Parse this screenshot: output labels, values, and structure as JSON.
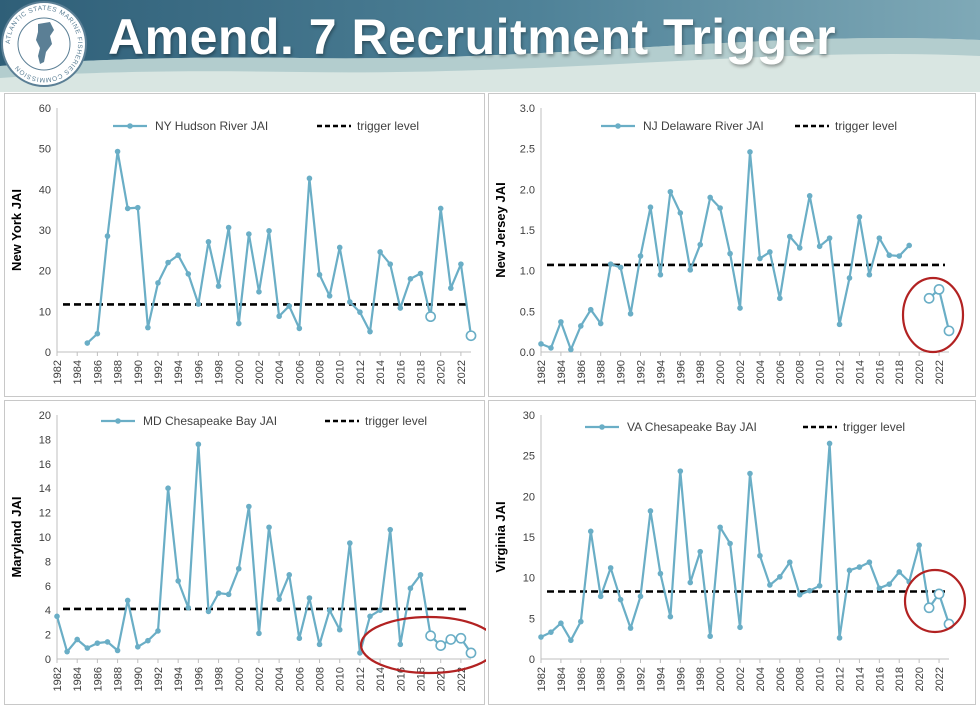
{
  "header": {
    "title": "Amend. 7 Recruitment Trigger",
    "logo_text": "ATLANTIC STATES MARINE FISHERIES COMMISSION"
  },
  "colors": {
    "series": "#6aaec6",
    "trigger": "#000000",
    "highlight": "#b22222",
    "header_dark": "#3f6f86",
    "header_light": "#cfe0dc"
  },
  "chart_data": [
    {
      "type": "line",
      "ylabel": "New York JAI",
      "ylim": [
        0,
        60
      ],
      "yticks": [
        "0",
        "10",
        "20",
        "30",
        "40",
        "50",
        "60"
      ],
      "xticks": [
        "1982",
        "1984",
        "1986",
        "1988",
        "1990",
        "1992",
        "1994",
        "1996",
        "1998",
        "2000",
        "2002",
        "2004",
        "2006",
        "2008",
        "2010",
        "2012",
        "2014",
        "2016",
        "2018",
        "2020",
        "2022"
      ],
      "legend": {
        "series": "NY Hudson River JAI",
        "trigger": "trigger level"
      },
      "trigger_level": 11.7,
      "series": [
        {
          "name": "NY Hudson River JAI",
          "x": [
            1985,
            1986,
            1987,
            1988,
            1989,
            1990,
            1991,
            1992,
            1993,
            1994,
            1995,
            1996,
            1997,
            1998,
            1999,
            2000,
            2001,
            2002,
            2003,
            2004,
            2005,
            2006,
            2007,
            2008,
            2009,
            2010,
            2011,
            2012,
            2013,
            2014,
            2015,
            2016,
            2017,
            2018,
            2019,
            2020,
            2021,
            2022,
            2023
          ],
          "y": [
            2.2,
            4.5,
            28.5,
            49.3,
            35.3,
            35.5,
            6.0,
            17.0,
            22.0,
            23.8,
            19.2,
            11.8,
            27.1,
            16.2,
            30.6,
            7.0,
            29.0,
            14.8,
            29.8,
            8.8,
            11.3,
            5.8,
            42.7,
            19.0,
            13.8,
            25.7,
            12.3,
            9.8,
            5.0,
            24.6,
            21.6,
            10.8,
            18.0,
            19.3,
            8.7,
            35.3,
            15.7,
            21.6,
            4.0
          ]
        }
      ],
      "hollow_points": [
        [
          2019,
          8.7
        ],
        [
          2023,
          4.0
        ]
      ],
      "circled": false
    },
    {
      "type": "line",
      "ylabel": "New Jersey JAI",
      "ylim": [
        0,
        3
      ],
      "yticks": [
        "0.0",
        "0.5",
        "1.0",
        "1.5",
        "2.0",
        "2.5",
        "3.0"
      ],
      "xticks": [
        "1982",
        "1984",
        "1986",
        "1988",
        "1990",
        "1992",
        "1994",
        "1996",
        "1998",
        "2000",
        "2002",
        "2004",
        "2006",
        "2008",
        "2010",
        "2012",
        "2014",
        "2016",
        "2018",
        "2020",
        "2022"
      ],
      "legend": {
        "series": "NJ Delaware River JAI",
        "trigger": "trigger level"
      },
      "trigger_level": 1.07,
      "series": [
        {
          "name": "NJ Delaware River JAI",
          "x": [
            1982,
            1983,
            1984,
            1985,
            1986,
            1987,
            1988,
            1989,
            1990,
            1991,
            1992,
            1993,
            1994,
            1995,
            1996,
            1997,
            1998,
            1999,
            2000,
            2001,
            2002,
            2003,
            2004,
            2005,
            2006,
            2007,
            2008,
            2009,
            2010,
            2011,
            2012,
            2013,
            2014,
            2015,
            2016,
            2017,
            2018,
            2019
          ],
          "y": [
            0.1,
            0.05,
            0.37,
            0.03,
            0.32,
            0.52,
            0.35,
            1.08,
            1.04,
            0.47,
            1.18,
            1.78,
            0.95,
            1.97,
            1.71,
            1.01,
            1.32,
            1.9,
            1.77,
            1.21,
            0.54,
            2.46,
            1.15,
            1.23,
            0.66,
            1.42,
            1.28,
            1.92,
            1.3,
            1.4,
            0.34,
            0.91,
            1.66,
            0.95,
            1.4,
            1.19,
            1.18,
            1.31
          ]
        },
        {
          "name": "",
          "x": [
            2021,
            2022,
            2023
          ],
          "y": [
            0.66,
            0.77,
            0.26
          ]
        }
      ],
      "hollow_points": [
        [
          2021,
          0.66
        ],
        [
          2022,
          0.77
        ],
        [
          2023,
          0.26
        ]
      ],
      "circled": true
    },
    {
      "type": "line",
      "ylabel": "Maryland JAI",
      "ylim": [
        0,
        20
      ],
      "yticks": [
        "0",
        "2",
        "4",
        "6",
        "8",
        "10",
        "12",
        "14",
        "16",
        "18",
        "20"
      ],
      "xticks": [
        "1982",
        "1984",
        "1986",
        "1988",
        "1990",
        "1992",
        "1994",
        "1996",
        "1998",
        "2000",
        "2002",
        "2004",
        "2006",
        "2008",
        "2010",
        "2012",
        "2014",
        "2016",
        "2018",
        "2020",
        "2022"
      ],
      "legend": {
        "series": "MD Chesapeake Bay JAI",
        "trigger": "trigger level"
      },
      "trigger_level": 4.1,
      "series": [
        {
          "name": "MD Chesapeake Bay JAI",
          "x": [
            1982,
            1983,
            1984,
            1985,
            1986,
            1987,
            1988,
            1989,
            1990,
            1991,
            1992,
            1993,
            1994,
            1995,
            1996,
            1997,
            1998,
            1999,
            2000,
            2001,
            2002,
            2003,
            2004,
            2005,
            2006,
            2007,
            2008,
            2009,
            2010,
            2011,
            2012,
            2013,
            2014,
            2015,
            2016,
            2017,
            2018,
            2019,
            2020,
            2021,
            2022,
            2023
          ],
          "y": [
            3.5,
            0.6,
            1.6,
            0.9,
            1.3,
            1.4,
            0.7,
            4.8,
            1.0,
            1.5,
            2.3,
            14.0,
            6.4,
            4.2,
            17.6,
            3.9,
            5.4,
            5.3,
            7.4,
            12.5,
            2.1,
            10.8,
            4.9,
            6.9,
            1.7,
            5.0,
            1.2,
            4.0,
            2.4,
            9.5,
            0.5,
            3.5,
            4.0,
            10.6,
            1.2,
            5.8,
            6.9,
            1.9,
            1.1,
            1.6,
            1.7,
            0.5
          ]
        }
      ],
      "hollow_points": [
        [
          2019,
          1.9
        ],
        [
          2020,
          1.1
        ],
        [
          2021,
          1.6
        ],
        [
          2022,
          1.7
        ],
        [
          2023,
          0.5
        ]
      ],
      "circled": true
    },
    {
      "type": "line",
      "ylabel": "Virginia JAI",
      "ylim": [
        0,
        30
      ],
      "yticks": [
        "0",
        "5",
        "10",
        "15",
        "20",
        "25",
        "30"
      ],
      "xticks": [
        "1982",
        "1984",
        "1986",
        "1988",
        "1990",
        "1992",
        "1994",
        "1996",
        "1998",
        "2000",
        "2002",
        "2004",
        "2006",
        "2008",
        "2010",
        "2012",
        "2014",
        "2016",
        "2018",
        "2020",
        "2022"
      ],
      "legend": {
        "series": "VA Chesapeake Bay JAI",
        "trigger": "trigger level"
      },
      "trigger_level": 8.3,
      "series": [
        {
          "name": "VA Chesapeake Bay JAI",
          "x": [
            1982,
            1983,
            1984,
            1985,
            1986,
            1987,
            1988,
            1989,
            1990,
            1991,
            1992,
            1993,
            1994,
            1995,
            1996,
            1997,
            1998,
            1999,
            2000,
            2001,
            2002,
            2003,
            2004,
            2005,
            2006,
            2007,
            2008,
            2009,
            2010,
            2011,
            2012,
            2013,
            2014,
            2015,
            2016,
            2017,
            2018,
            2019,
            2020,
            2021,
            2022,
            2023
          ],
          "y": [
            2.7,
            3.3,
            4.4,
            2.3,
            4.6,
            15.7,
            7.7,
            11.2,
            7.3,
            3.8,
            7.7,
            18.2,
            10.5,
            5.2,
            23.1,
            9.4,
            13.2,
            2.8,
            16.2,
            14.2,
            3.9,
            22.8,
            12.7,
            9.1,
            10.1,
            11.9,
            7.9,
            8.4,
            9.0,
            26.5,
            2.6,
            10.9,
            11.3,
            11.9,
            8.7,
            9.2,
            10.7,
            9.5,
            14.0,
            6.3,
            8.0,
            4.3
          ]
        }
      ],
      "hollow_points": [
        [
          2021,
          6.3
        ],
        [
          2022,
          8.0
        ],
        [
          2023,
          4.3
        ]
      ],
      "circled": true
    }
  ]
}
